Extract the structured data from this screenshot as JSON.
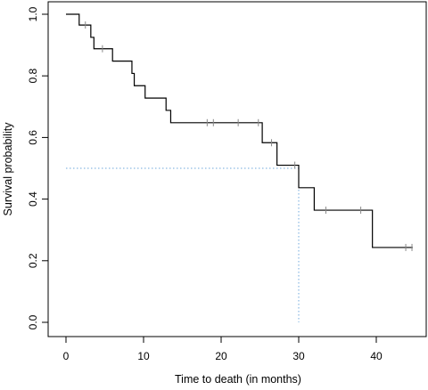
{
  "chart_data": {
    "type": "line",
    "subtype": "kaplan-meier survival curve",
    "title": "",
    "xlabel": "Time to death (in months)",
    "ylabel": "Survival probability",
    "xlim": [
      0,
      45
    ],
    "ylim": [
      0,
      1
    ],
    "x_ticks": [
      0,
      10,
      20,
      30,
      40
    ],
    "y_ticks": [
      0.0,
      0.2,
      0.4,
      0.6,
      0.8,
      1.0
    ],
    "x_tick_labels": [
      "0",
      "10",
      "20",
      "30",
      "40"
    ],
    "y_tick_labels": [
      "0.0",
      "0.2",
      "0.4",
      "0.6",
      "0.8",
      "1.0"
    ],
    "grid": false,
    "series": [
      {
        "color": "#000000",
        "steps": [
          {
            "x": 0,
            "y": 1.0
          },
          {
            "x": 1.7,
            "y": 0.965
          },
          {
            "x": 3.2,
            "y": 0.925
          },
          {
            "x": 3.6,
            "y": 0.888
          },
          {
            "x": 6.0,
            "y": 0.848
          },
          {
            "x": 8.5,
            "y": 0.808
          },
          {
            "x": 8.8,
            "y": 0.768
          },
          {
            "x": 10.2,
            "y": 0.728
          },
          {
            "x": 12.9,
            "y": 0.688
          },
          {
            "x": 13.5,
            "y": 0.648
          },
          {
            "x": 25.3,
            "y": 0.583
          },
          {
            "x": 27.2,
            "y": 0.51
          },
          {
            "x": 30.0,
            "y": 0.437
          },
          {
            "x": 32.0,
            "y": 0.364
          },
          {
            "x": 39.5,
            "y": 0.243
          }
        ],
        "end_x": 44.7,
        "censored": [
          {
            "x": 2.5,
            "y": 0.965
          },
          {
            "x": 4.7,
            "y": 0.888
          },
          {
            "x": 18.2,
            "y": 0.648
          },
          {
            "x": 19.0,
            "y": 0.648
          },
          {
            "x": 22.2,
            "y": 0.648
          },
          {
            "x": 24.8,
            "y": 0.648
          },
          {
            "x": 26.5,
            "y": 0.583
          },
          {
            "x": 29.5,
            "y": 0.51
          },
          {
            "x": 33.5,
            "y": 0.364
          },
          {
            "x": 38.0,
            "y": 0.364
          },
          {
            "x": 43.8,
            "y": 0.243
          },
          {
            "x": 44.6,
            "y": 0.243
          }
        ]
      }
    ],
    "median_reference": {
      "y": 0.5,
      "x": 30,
      "color": "#6fa8dc"
    }
  }
}
